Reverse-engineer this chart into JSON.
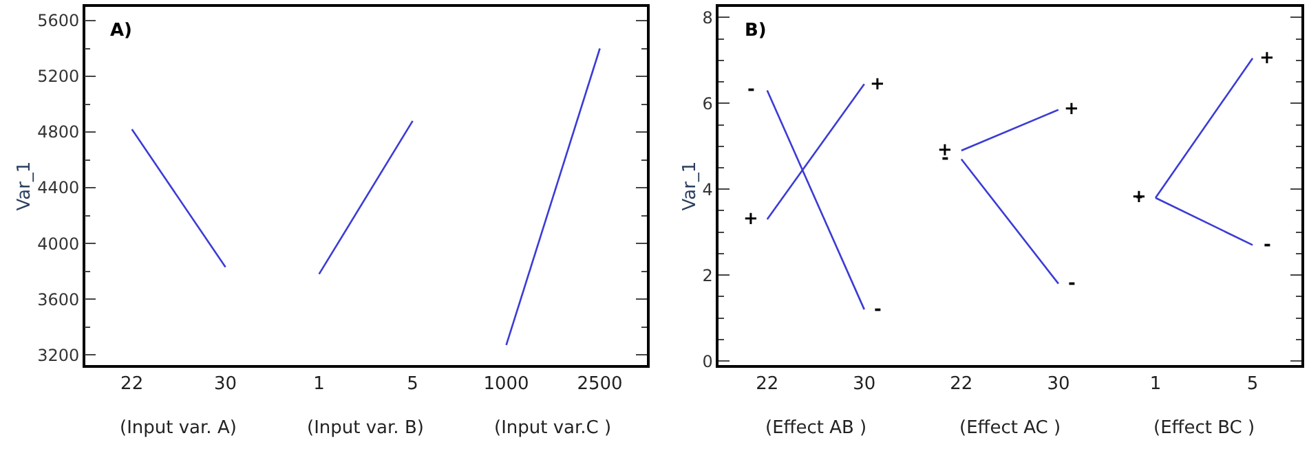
{
  "chart_data": [
    {
      "type": "line",
      "title": "A)",
      "ylabel": "Var_1",
      "categories": [
        "22",
        "30",
        "1",
        "5",
        "1000",
        "2500"
      ],
      "ylim": [
        3125,
        5700
      ],
      "yticks": [
        3200,
        3600,
        4000,
        4400,
        4800,
        5200,
        5600
      ],
      "marker": "none",
      "line_style": "solid",
      "annotations": [
        "(Input var. A)",
        "(Input var. B)",
        "(Input var.C )"
      ],
      "series": [
        {
          "color": "#3b3bd6",
          "values": [
            4820,
            3830,
            null,
            null,
            null,
            null
          ]
        },
        {
          "color": "#3b3bd6",
          "values": [
            null,
            null,
            3780,
            4880,
            null,
            null
          ]
        },
        {
          "color": "#3b3bd6",
          "values": [
            null,
            null,
            null,
            null,
            3270,
            5400
          ]
        }
      ]
    },
    {
      "type": "line",
      "title": "B)",
      "ylabel": "Var_1",
      "categories": [
        "22",
        "30",
        "22",
        "30",
        "1",
        "5"
      ],
      "ylim": [
        -0.1,
        8.25
      ],
      "yticks": [
        0,
        2,
        4,
        6,
        8
      ],
      "marker": "none",
      "line_style": "solid",
      "annotations": [
        "(Effect AB )",
        "(Effect AC )",
        "(Effect BC )"
      ],
      "series": [
        {
          "name": "+",
          "color": "#3b3bd6",
          "values": [
            3.3,
            6.45,
            null,
            null,
            null,
            null
          ]
        },
        {
          "name": "-",
          "color": "#3b3bd6",
          "values": [
            6.3,
            1.2,
            null,
            null,
            null,
            null
          ]
        },
        {
          "name": "+",
          "color": "#3b3bd6",
          "values": [
            null,
            null,
            4.9,
            5.85,
            null,
            null
          ]
        },
        {
          "name": "-",
          "color": "#3b3bd6",
          "values": [
            null,
            null,
            4.7,
            1.8,
            null,
            null
          ]
        },
        {
          "name": "+",
          "color": "#3b3bd6",
          "values": [
            null,
            null,
            null,
            null,
            3.8,
            7.05
          ]
        },
        {
          "name": "-",
          "color": "#3b3bd6",
          "values": [
            null,
            null,
            null,
            null,
            3.8,
            2.7
          ]
        }
      ]
    }
  ]
}
